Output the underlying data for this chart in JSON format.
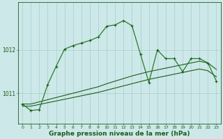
{
  "background_color": "#cce8e8",
  "grid_color": "#aacccc",
  "line_color_dark": "#1a5c1a",
  "line_color_mid": "#2a7a2a",
  "xlabel": "Graphe pression niveau de la mer (hPa)",
  "xlabel_fontsize": 6.5,
  "yticks": [
    1011,
    1012
  ],
  "ylim": [
    1010.3,
    1013.1
  ],
  "xlim": [
    -0.5,
    23.5
  ],
  "xticks": [
    0,
    1,
    2,
    3,
    4,
    5,
    6,
    7,
    8,
    9,
    10,
    11,
    12,
    13,
    14,
    15,
    16,
    17,
    18,
    19,
    20,
    21,
    22,
    23
  ],
  "main_y": [
    1010.75,
    1010.6,
    1010.62,
    1011.2,
    1011.62,
    1012.02,
    1012.1,
    1012.16,
    1012.22,
    1012.3,
    1012.55,
    1012.58,
    1012.68,
    1012.56,
    1011.9,
    1011.25,
    1012.0,
    1011.8,
    1011.8,
    1011.5,
    1011.8,
    1011.8,
    1011.7,
    1011.28
  ],
  "smooth1_y": [
    1010.75,
    1010.75,
    1010.8,
    1010.85,
    1010.9,
    1010.95,
    1011.0,
    1011.05,
    1011.1,
    1011.15,
    1011.22,
    1011.28,
    1011.34,
    1011.4,
    1011.45,
    1011.5,
    1011.54,
    1011.58,
    1011.62,
    1011.66,
    1011.7,
    1011.74,
    1011.7,
    1011.55
  ],
  "smooth2_y": [
    1010.7,
    1010.7,
    1010.74,
    1010.78,
    1010.82,
    1010.86,
    1010.9,
    1010.94,
    1010.98,
    1011.02,
    1011.07,
    1011.12,
    1011.17,
    1011.22,
    1011.27,
    1011.32,
    1011.36,
    1011.4,
    1011.44,
    1011.48,
    1011.52,
    1011.56,
    1011.52,
    1011.38
  ]
}
